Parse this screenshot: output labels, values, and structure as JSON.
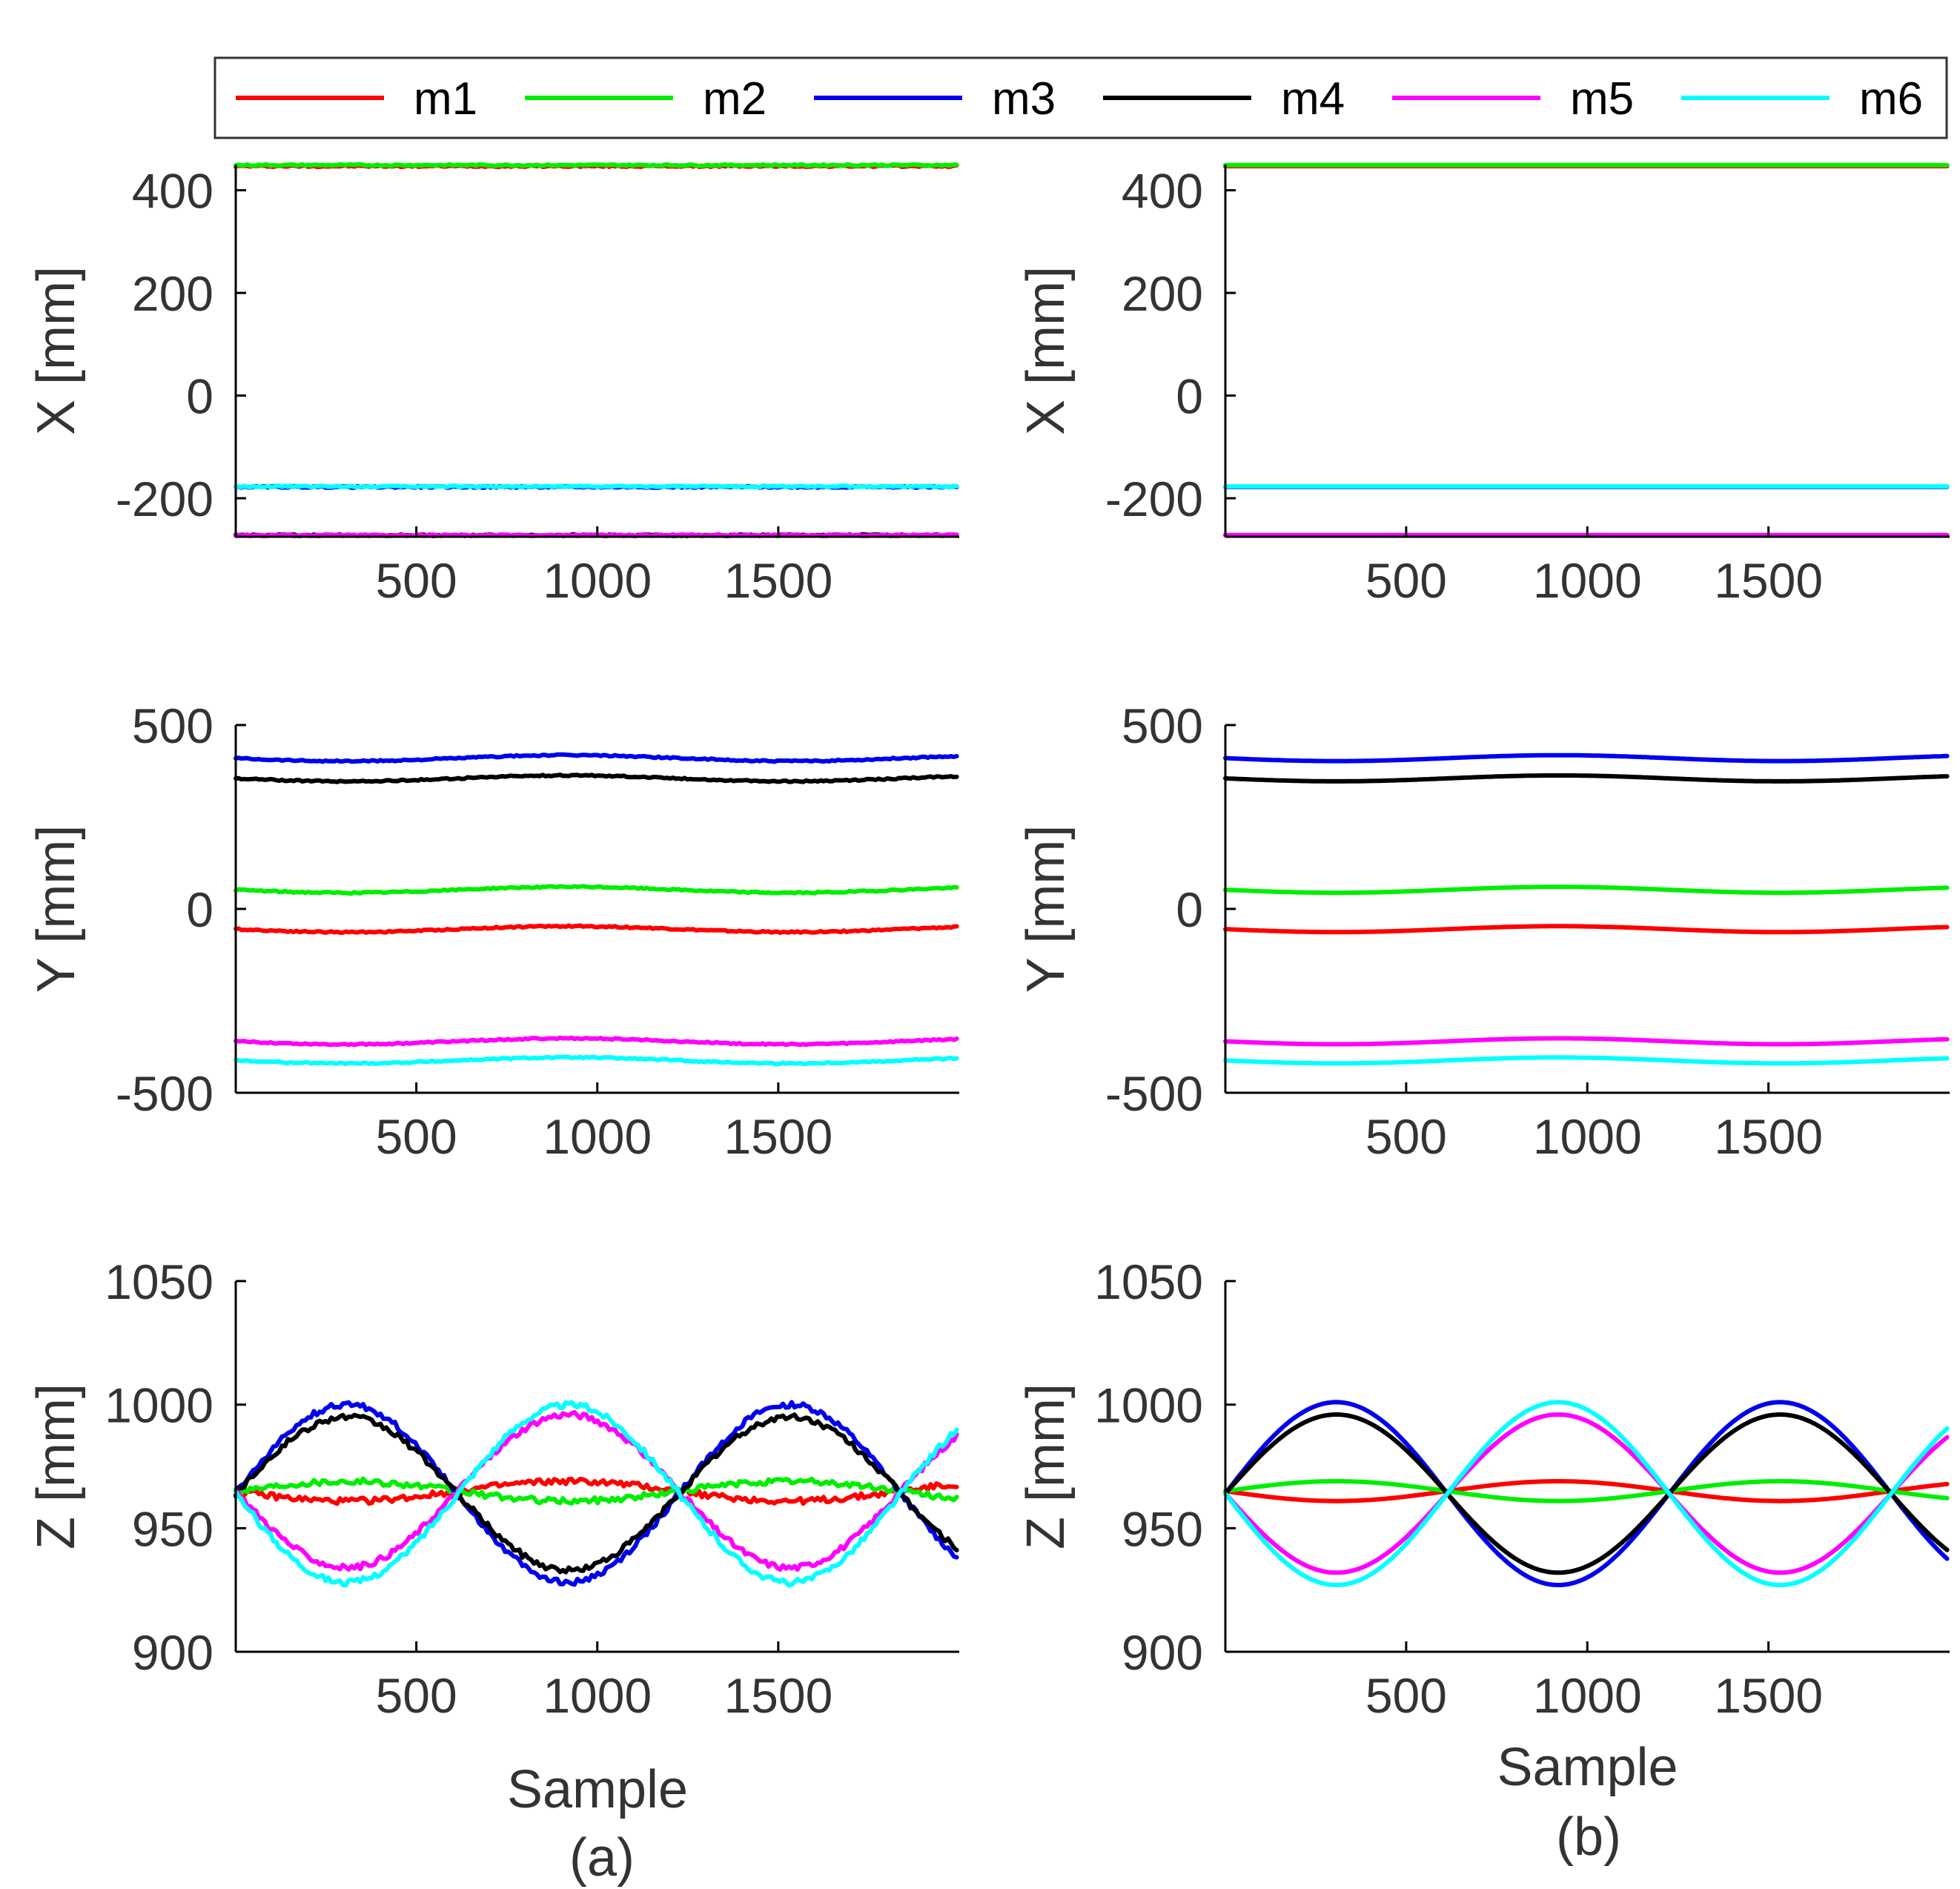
{
  "legend": {
    "entries": [
      {
        "name": "m1",
        "color": "#ff0000"
      },
      {
        "name": "m2",
        "color": "#00ee00"
      },
      {
        "name": "m3",
        "color": "#0000ee"
      },
      {
        "name": "m4",
        "color": "#000000"
      },
      {
        "name": "m5",
        "color": "#ff00ff"
      },
      {
        "name": "m6",
        "color": "#00ffff"
      }
    ]
  },
  "captions": {
    "a": "(a)",
    "b": "(b)"
  },
  "chart_data": [
    {
      "id": "a-x",
      "type": "line",
      "panel": "(a)",
      "title": "",
      "xlabel": "",
      "ylabel": "X [mm]",
      "xlim": [
        1,
        2000
      ],
      "ylim": [
        -275,
        450
      ],
      "xticks": [
        500,
        1000,
        1500
      ],
      "yticks": [
        -200,
        0,
        200,
        400
      ],
      "x_samples": 2000,
      "noise": 1.5,
      "series": [
        {
          "name": "m1",
          "color": "#ff0000",
          "base": 447,
          "amp": 0,
          "phase": 0
        },
        {
          "name": "m2",
          "color": "#00ee00",
          "base": 449,
          "amp": 0,
          "phase": 0
        },
        {
          "name": "m3",
          "color": "#0000ee",
          "base": -178,
          "amp": 0,
          "phase": 0
        },
        {
          "name": "m4",
          "color": "#000000",
          "base": -272,
          "amp": 0,
          "phase": 0
        },
        {
          "name": "m5",
          "color": "#ff00ff",
          "base": -272,
          "amp": 0,
          "phase": 0
        },
        {
          "name": "m6",
          "color": "#00ffff",
          "base": -177,
          "amp": 0,
          "phase": 0
        }
      ]
    },
    {
      "id": "b-x",
      "type": "line",
      "panel": "(b)",
      "title": "",
      "xlabel": "",
      "ylabel": "X [mm]",
      "xlim": [
        1,
        2000
      ],
      "ylim": [
        -275,
        450
      ],
      "xticks": [
        500,
        1000,
        1500
      ],
      "yticks": [
        -200,
        0,
        200,
        400
      ],
      "x_samples": 2000,
      "noise": 0,
      "series": [
        {
          "name": "m1",
          "color": "#ff0000",
          "base": 447,
          "amp": 0,
          "phase": 0
        },
        {
          "name": "m2",
          "color": "#00ee00",
          "base": 449,
          "amp": 0,
          "phase": 0
        },
        {
          "name": "m3",
          "color": "#0000ee",
          "base": -178,
          "amp": 0,
          "phase": 0
        },
        {
          "name": "m4",
          "color": "#000000",
          "base": -272,
          "amp": 0,
          "phase": 0
        },
        {
          "name": "m5",
          "color": "#ff00ff",
          "base": -272,
          "amp": 0,
          "phase": 0
        },
        {
          "name": "m6",
          "color": "#00ffff",
          "base": -177,
          "amp": 0,
          "phase": 0
        }
      ]
    },
    {
      "id": "a-y",
      "type": "line",
      "panel": "(a)",
      "title": "",
      "xlabel": "",
      "ylabel": "Y [mm]",
      "xlim": [
        1,
        2000
      ],
      "ylim": [
        -500,
        500
      ],
      "xticks": [
        500,
        1000,
        1500
      ],
      "yticks": [
        -500,
        0,
        500
      ],
      "x_samples": 2000,
      "noise": 2,
      "series": [
        {
          "name": "m1",
          "color": "#ff0000",
          "base": -55,
          "amp": -8,
          "phase": 0
        },
        {
          "name": "m2",
          "color": "#00ee00",
          "base": 52,
          "amp": -8,
          "phase": 0
        },
        {
          "name": "m3",
          "color": "#0000ee",
          "base": 410,
          "amp": -8,
          "phase": 0
        },
        {
          "name": "m4",
          "color": "#000000",
          "base": 355,
          "amp": -8,
          "phase": 0
        },
        {
          "name": "m5",
          "color": "#ff00ff",
          "base": -360,
          "amp": -8,
          "phase": 0
        },
        {
          "name": "m6",
          "color": "#00ffff",
          "base": -412,
          "amp": -8,
          "phase": 0
        }
      ]
    },
    {
      "id": "b-y",
      "type": "line",
      "panel": "(b)",
      "title": "",
      "xlabel": "",
      "ylabel": "Y [mm]",
      "xlim": [
        1,
        2000
      ],
      "ylim": [
        -500,
        500
      ],
      "xticks": [
        500,
        1000,
        1500
      ],
      "yticks": [
        -500,
        0,
        500
      ],
      "x_samples": 2000,
      "noise": 0,
      "series": [
        {
          "name": "m1",
          "color": "#ff0000",
          "base": -55,
          "amp": -8,
          "phase": 0
        },
        {
          "name": "m2",
          "color": "#00ee00",
          "base": 52,
          "amp": -8,
          "phase": 0
        },
        {
          "name": "m3",
          "color": "#0000ee",
          "base": 410,
          "amp": -8,
          "phase": 0
        },
        {
          "name": "m4",
          "color": "#000000",
          "base": 355,
          "amp": -8,
          "phase": 0
        },
        {
          "name": "m5",
          "color": "#ff00ff",
          "base": -360,
          "amp": -8,
          "phase": 0
        },
        {
          "name": "m6",
          "color": "#00ffff",
          "base": -412,
          "amp": -8,
          "phase": 0
        }
      ]
    },
    {
      "id": "a-z",
      "type": "line",
      "panel": "(a)",
      "title": "",
      "xlabel": "Sample",
      "ylabel": "Z [mm]",
      "xlim": [
        1,
        2000
      ],
      "ylim": [
        900,
        1050
      ],
      "xticks": [
        500,
        1000,
        1500
      ],
      "yticks": [
        900,
        950,
        1000,
        1050
      ],
      "x_samples": 2000,
      "noise": 1.2,
      "series": [
        {
          "name": "m1",
          "color": "#ff0000",
          "base": 965,
          "amp": -4,
          "phase": 0
        },
        {
          "name": "m2",
          "color": "#00ee00",
          "base": 965,
          "amp": 4,
          "phase": 0
        },
        {
          "name": "m3",
          "color": "#0000ee",
          "base": 964,
          "amp": 36,
          "phase": 0
        },
        {
          "name": "m4",
          "color": "#000000",
          "base": 964,
          "amp": 31,
          "phase": 0
        },
        {
          "name": "m5",
          "color": "#ff00ff",
          "base": 965,
          "amp": -31,
          "phase": 0
        },
        {
          "name": "m6",
          "color": "#00ffff",
          "base": 964,
          "amp": -36,
          "phase": 0
        }
      ]
    },
    {
      "id": "b-z",
      "type": "line",
      "panel": "(b)",
      "title": "",
      "xlabel": "Sample",
      "ylabel": "Z [mm]",
      "xlim": [
        1,
        2000
      ],
      "ylim": [
        900,
        1050
      ],
      "xticks": [
        500,
        1000,
        1500
      ],
      "yticks": [
        900,
        950,
        1000,
        1050
      ],
      "x_samples": 2000,
      "noise": 0,
      "series": [
        {
          "name": "m1",
          "color": "#ff0000",
          "base": 965,
          "amp": -4,
          "phase": 0
        },
        {
          "name": "m2",
          "color": "#00ee00",
          "base": 965,
          "amp": 4,
          "phase": 0
        },
        {
          "name": "m3",
          "color": "#0000ee",
          "base": 964,
          "amp": 37,
          "phase": 0
        },
        {
          "name": "m4",
          "color": "#000000",
          "base": 964,
          "amp": 32,
          "phase": 0
        },
        {
          "name": "m5",
          "color": "#ff00ff",
          "base": 964,
          "amp": -32,
          "phase": 0
        },
        {
          "name": "m6",
          "color": "#00ffff",
          "base": 964,
          "amp": -37,
          "phase": 0
        }
      ]
    }
  ]
}
